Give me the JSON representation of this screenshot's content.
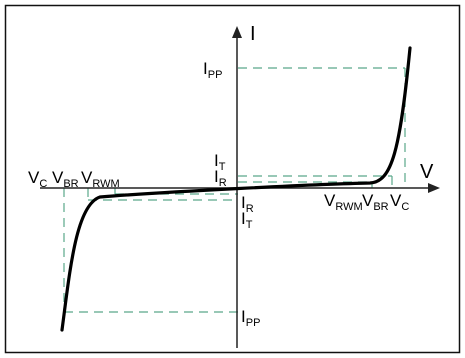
{
  "axis_labels": {
    "current": "I",
    "voltage": "V"
  },
  "labels": {
    "i_pp_top": {
      "main": "I",
      "sub": "PP"
    },
    "i_t_top": {
      "main": "I",
      "sub": "T"
    },
    "i_r_top": {
      "main": "I",
      "sub": "R"
    },
    "i_r_bottom": {
      "main": "I",
      "sub": "R"
    },
    "i_t_bottom": {
      "main": "I",
      "sub": "T"
    },
    "i_pp_bottom": {
      "main": "I",
      "sub": "PP"
    },
    "v_c_left": {
      "main": "V",
      "sub": "C"
    },
    "v_br_left": {
      "main": "V",
      "sub": "BR"
    },
    "v_rwm_left": {
      "main": "V",
      "sub": "RWM"
    },
    "v_rwm_right": {
      "main": "V",
      "sub": "RWM"
    },
    "v_br_right": {
      "main": "V",
      "sub": "BR"
    },
    "v_c_right": {
      "main": "V",
      "sub": "C"
    }
  },
  "colors": {
    "frame": "#111111",
    "axes": "#222222",
    "curve": "#000000",
    "guides": "#5aa88a",
    "text": "#000000"
  }
}
